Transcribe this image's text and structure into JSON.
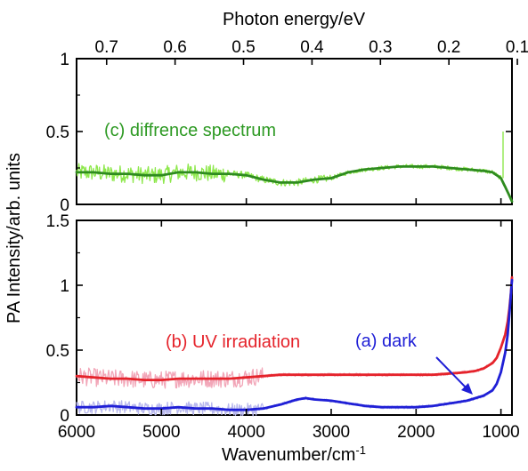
{
  "chart_data": {
    "type": "line",
    "panels": [
      {
        "name": "upper",
        "x_axis": {
          "label": "Photon energy/eV",
          "ticks": [
            "0.7",
            "0.6",
            "0.5",
            "0.4",
            "0.3",
            "0.2",
            "0.1"
          ],
          "tick_values": [
            0.7,
            0.6,
            0.5,
            0.4,
            0.3,
            0.2,
            0.1
          ]
        },
        "y_axis": {
          "ticks": [
            "0",
            "0.5",
            "1"
          ],
          "tick_values": [
            0,
            0.5,
            1
          ],
          "range": [
            0,
            1
          ]
        },
        "series": [
          {
            "name": "(c) diffrence spectrum",
            "color": "#2e8b1f",
            "noise_color": "#8ee84c",
            "x": [
              6000,
              5800,
              5600,
              5400,
              5200,
              5000,
              4800,
              4600,
              4400,
              4200,
              4000,
              3800,
              3600,
              3400,
              3200,
              3000,
              2800,
              2600,
              2400,
              2200,
              2000,
              1800,
              1600,
              1400,
              1200,
              1100,
              1000,
              950,
              900,
              870
            ],
            "y": [
              0.22,
              0.22,
              0.21,
              0.21,
              0.2,
              0.2,
              0.22,
              0.22,
              0.21,
              0.21,
              0.2,
              0.17,
              0.15,
              0.15,
              0.17,
              0.18,
              0.22,
              0.24,
              0.25,
              0.26,
              0.26,
              0.26,
              0.25,
              0.24,
              0.23,
              0.22,
              0.18,
              0.12,
              0.06,
              0.02
            ]
          }
        ],
        "annotations": [
          {
            "text": "(c) diffrence spectrum",
            "color": "#2e9a24"
          }
        ]
      },
      {
        "name": "lower",
        "x_axis": {
          "label": "Wavenumber/cm-1",
          "ticks": [
            "6000",
            "5000",
            "4000",
            "3000",
            "2000",
            "1000"
          ],
          "tick_values": [
            6000,
            5000,
            4000,
            3000,
            2000,
            1000
          ],
          "range": [
            6000,
            870
          ],
          "reversed": true
        },
        "y_axis": {
          "ticks": [
            "0",
            "0.5",
            "1",
            "1.5"
          ],
          "tick_values": [
            0,
            0.5,
            1,
            1.5
          ],
          "range": [
            0,
            1.5
          ]
        },
        "series": [
          {
            "name": "(b) UV irradiation",
            "color": "#e5232b",
            "noise_color": "#f2a6b8",
            "x": [
              6000,
              5800,
              5600,
              5400,
              5200,
              5000,
              4800,
              4600,
              4400,
              4200,
              4000,
              3800,
              3600,
              3400,
              3200,
              3000,
              2800,
              2600,
              2400,
              2200,
              2000,
              1800,
              1600,
              1400,
              1300,
              1200,
              1100,
              1050,
              1000,
              950,
              920,
              900,
              880,
              870
            ],
            "y": [
              0.3,
              0.29,
              0.28,
              0.28,
              0.27,
              0.27,
              0.28,
              0.28,
              0.28,
              0.28,
              0.29,
              0.3,
              0.31,
              0.31,
              0.31,
              0.31,
              0.31,
              0.31,
              0.31,
              0.31,
              0.31,
              0.31,
              0.32,
              0.33,
              0.34,
              0.36,
              0.4,
              0.44,
              0.52,
              0.62,
              0.72,
              0.82,
              0.95,
              1.06
            ]
          },
          {
            "name": "(a) dark",
            "color": "#1f1fd6",
            "noise_color": "#b8b8ee",
            "x": [
              6000,
              5800,
              5600,
              5400,
              5200,
              5000,
              4800,
              4600,
              4400,
              4200,
              4000,
              3800,
              3600,
              3400,
              3300,
              3200,
              3000,
              2800,
              2600,
              2400,
              2200,
              2000,
              1800,
              1600,
              1400,
              1300,
              1200,
              1100,
              1050,
              1000,
              950,
              920,
              900,
              880,
              870
            ],
            "y": [
              0.06,
              0.06,
              0.07,
              0.06,
              0.05,
              0.05,
              0.06,
              0.05,
              0.05,
              0.04,
              0.04,
              0.05,
              0.08,
              0.12,
              0.13,
              0.12,
              0.11,
              0.09,
              0.07,
              0.06,
              0.06,
              0.06,
              0.07,
              0.09,
              0.11,
              0.13,
              0.15,
              0.19,
              0.24,
              0.33,
              0.48,
              0.62,
              0.78,
              0.95,
              1.04
            ]
          }
        ],
        "annotations": [
          {
            "text": "(b) UV irradiation",
            "color": "#e5232b"
          },
          {
            "text": "(a) dark",
            "color": "#1f1fd6"
          }
        ]
      }
    ],
    "shared_y_label": "PA Intensity/arb. units"
  }
}
